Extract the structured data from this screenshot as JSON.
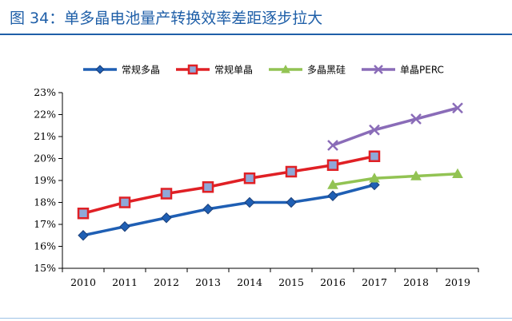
{
  "figure": {
    "title": "图 34：单多晶电池量产转换效率差距逐步拉大"
  },
  "chart_data": {
    "type": "line",
    "x": [
      "2010",
      "2011",
      "2012",
      "2013",
      "2014",
      "2015",
      "2016",
      "2017",
      "2018",
      "2019"
    ],
    "ylim": [
      15,
      23
    ],
    "yticks": [
      "15%",
      "16%",
      "17%",
      "18%",
      "19%",
      "20%",
      "21%",
      "22%",
      "23%"
    ],
    "legend_position": "top",
    "grid": false,
    "series": [
      {
        "name": "常规多晶",
        "color": "#1f5fb4",
        "fill": "#1f5fb4",
        "marker": "diamond",
        "values": [
          16.5,
          16.9,
          17.3,
          17.7,
          18.0,
          18.0,
          18.3,
          18.8,
          null,
          null
        ]
      },
      {
        "name": "常规单晶",
        "color": "#e02025",
        "fill": "#8fa8d8",
        "marker": "square",
        "values": [
          17.5,
          18.0,
          18.4,
          18.7,
          19.1,
          19.4,
          19.7,
          20.1,
          null,
          null
        ]
      },
      {
        "name": "多晶黑硅",
        "color": "#92c353",
        "fill": "#92c353",
        "marker": "triangle",
        "values": [
          null,
          null,
          null,
          null,
          null,
          null,
          18.8,
          19.1,
          19.2,
          19.3
        ]
      },
      {
        "name": "单晶PERC",
        "color": "#8a6cb8",
        "fill": "#8a6cb8",
        "marker": "cross",
        "values": [
          null,
          null,
          null,
          null,
          null,
          null,
          20.6,
          21.3,
          21.8,
          22.3
        ]
      }
    ]
  }
}
